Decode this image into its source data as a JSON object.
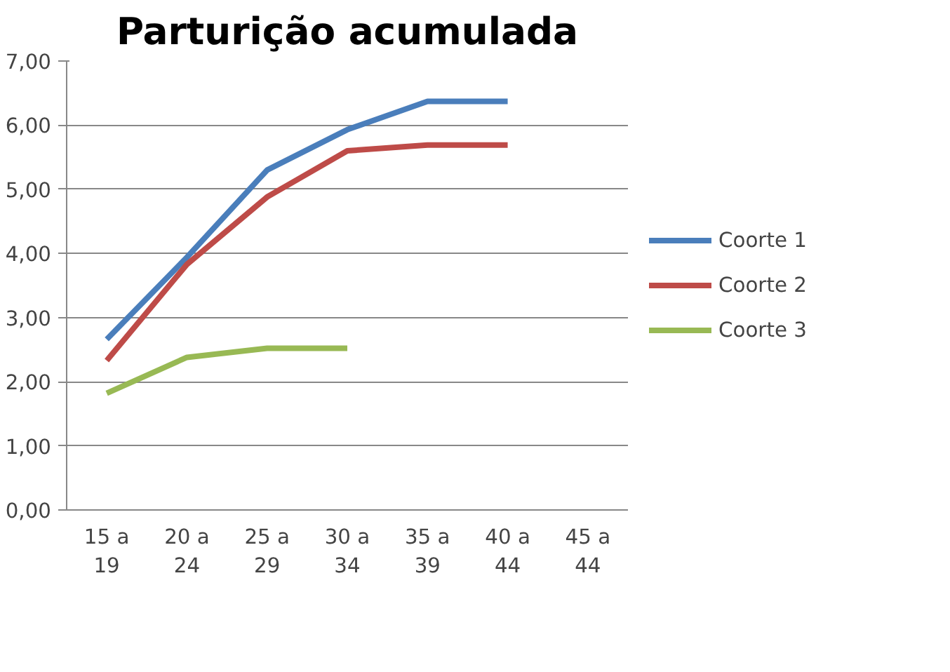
{
  "chart_data": {
    "type": "line",
    "title": "Parturição acumulada",
    "categories": [
      "15 a 19",
      "20 a 24",
      "25 a 29",
      "30 a 34",
      "35 a 39",
      "40 a 44",
      "45 a 44"
    ],
    "series": [
      {
        "name": "Coorte 1",
        "color": "#4a7ebb",
        "values": [
          2.66,
          3.94,
          5.3,
          5.93,
          6.37,
          6.37,
          null
        ]
      },
      {
        "name": "Coorte 2",
        "color": "#be4b48",
        "values": [
          2.33,
          3.83,
          4.88,
          5.6,
          5.69,
          5.69,
          null
        ]
      },
      {
        "name": "Coorte 3",
        "color": "#98b954",
        "values": [
          1.82,
          2.38,
          2.52,
          2.52,
          null,
          null,
          null
        ]
      }
    ],
    "ylim": [
      0,
      7
    ],
    "yticks": [
      {
        "value": 0,
        "label": "0,00"
      },
      {
        "value": 1,
        "label": "1,00"
      },
      {
        "value": 2,
        "label": "2,00"
      },
      {
        "value": 3,
        "label": "3,00"
      },
      {
        "value": 4,
        "label": "4,00"
      },
      {
        "value": 5,
        "label": "5,00"
      },
      {
        "value": 6,
        "label": "6,00"
      },
      {
        "value": 7,
        "label": "7,00"
      }
    ],
    "grid": "y",
    "legend": "right",
    "marker": "none",
    "line_style": "solid"
  }
}
